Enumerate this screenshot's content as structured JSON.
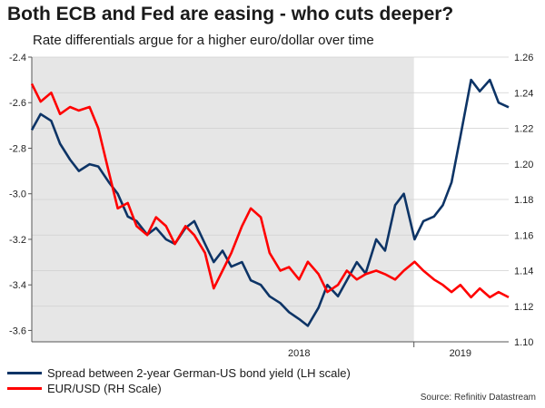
{
  "chart_data": {
    "type": "line",
    "title": "Both ECB and Fed are easing - who cuts deeper?",
    "subtitle": "Rate differentials argue for a higher euro/dollar over time",
    "source": "Source: Refinitiv Datastream",
    "x_tick_labels": [
      "2018",
      "2019"
    ],
    "shaded_period": [
      "2017-05-01",
      "2018-12-31"
    ],
    "x_range": [
      "2017-05-01",
      "2019-05-31"
    ],
    "y_left": {
      "range": [
        -3.65,
        -2.4
      ],
      "ticks": [
        -2.4,
        -2.6,
        -2.8,
        -3.0,
        -3.2,
        -3.4,
        -3.6
      ]
    },
    "y_right": {
      "range": [
        1.1,
        1.26
      ],
      "ticks": [
        "1.26",
        "1.24",
        "1.22",
        "1.20",
        "1.18",
        "1.16",
        "1.14",
        "1.12",
        "1.10"
      ]
    },
    "legend_placement": "bottom",
    "grid": "horizontal",
    "colors": {
      "spread": "#0d3466",
      "eurusd": "#ff0000",
      "shade": "#e6e6e6"
    },
    "series": [
      {
        "name": "Spread between 2-year German-US bond yield (LH scale)",
        "axis": "left",
        "color": "#0d3466",
        "points": [
          [
            "2017-05-01",
            -2.72
          ],
          [
            "2017-05-15",
            -2.65
          ],
          [
            "2017-06-01",
            -2.68
          ],
          [
            "2017-06-15",
            -2.78
          ],
          [
            "2017-07-01",
            -2.85
          ],
          [
            "2017-07-15",
            -2.9
          ],
          [
            "2017-08-01",
            -2.87
          ],
          [
            "2017-08-15",
            -2.88
          ],
          [
            "2017-09-01",
            -2.95
          ],
          [
            "2017-09-15",
            -3.0
          ],
          [
            "2017-10-01",
            -3.1
          ],
          [
            "2017-10-15",
            -3.12
          ],
          [
            "2017-11-01",
            -3.18
          ],
          [
            "2017-11-15",
            -3.15
          ],
          [
            "2017-12-01",
            -3.2
          ],
          [
            "2017-12-15",
            -3.22
          ],
          [
            "2018-01-01",
            -3.15
          ],
          [
            "2018-01-15",
            -3.12
          ],
          [
            "2018-02-01",
            -3.22
          ],
          [
            "2018-02-15",
            -3.3
          ],
          [
            "2018-03-01",
            -3.25
          ],
          [
            "2018-03-15",
            -3.32
          ],
          [
            "2018-04-01",
            -3.3
          ],
          [
            "2018-04-15",
            -3.38
          ],
          [
            "2018-05-01",
            -3.4
          ],
          [
            "2018-05-15",
            -3.45
          ],
          [
            "2018-06-01",
            -3.48
          ],
          [
            "2018-06-15",
            -3.52
          ],
          [
            "2018-07-01",
            -3.55
          ],
          [
            "2018-07-15",
            -3.58
          ],
          [
            "2018-08-01",
            -3.5
          ],
          [
            "2018-08-15",
            -3.4
          ],
          [
            "2018-09-01",
            -3.45
          ],
          [
            "2018-09-15",
            -3.38
          ],
          [
            "2018-10-01",
            -3.3
          ],
          [
            "2018-10-15",
            -3.35
          ],
          [
            "2018-11-01",
            -3.2
          ],
          [
            "2018-11-15",
            -3.25
          ],
          [
            "2018-12-01",
            -3.05
          ],
          [
            "2018-12-15",
            -3.0
          ],
          [
            "2019-01-01",
            -3.2
          ],
          [
            "2019-01-15",
            -3.12
          ],
          [
            "2019-02-01",
            -3.1
          ],
          [
            "2019-02-15",
            -3.05
          ],
          [
            "2019-03-01",
            -2.95
          ],
          [
            "2019-03-15",
            -2.75
          ],
          [
            "2019-04-01",
            -2.5
          ],
          [
            "2019-04-15",
            -2.55
          ],
          [
            "2019-05-01",
            -2.5
          ],
          [
            "2019-05-15",
            -2.6
          ],
          [
            "2019-05-31",
            -2.62
          ]
        ]
      },
      {
        "name": "EUR/USD (RH Scale)",
        "axis": "right",
        "color": "#ff0000",
        "points": [
          [
            "2017-05-01",
            1.245
          ],
          [
            "2017-05-15",
            1.235
          ],
          [
            "2017-06-01",
            1.24
          ],
          [
            "2017-06-15",
            1.228
          ],
          [
            "2017-07-01",
            1.232
          ],
          [
            "2017-07-15",
            1.23
          ],
          [
            "2017-08-01",
            1.232
          ],
          [
            "2017-08-15",
            1.22
          ],
          [
            "2017-09-01",
            1.195
          ],
          [
            "2017-09-15",
            1.175
          ],
          [
            "2017-10-01",
            1.178
          ],
          [
            "2017-10-15",
            1.165
          ],
          [
            "2017-11-01",
            1.16
          ],
          [
            "2017-11-15",
            1.17
          ],
          [
            "2017-12-01",
            1.165
          ],
          [
            "2017-12-15",
            1.155
          ],
          [
            "2018-01-01",
            1.165
          ],
          [
            "2018-01-15",
            1.16
          ],
          [
            "2018-02-01",
            1.15
          ],
          [
            "2018-02-15",
            1.13
          ],
          [
            "2018-03-01",
            1.14
          ],
          [
            "2018-03-15",
            1.15
          ],
          [
            "2018-04-01",
            1.165
          ],
          [
            "2018-04-15",
            1.175
          ],
          [
            "2018-05-01",
            1.17
          ],
          [
            "2018-05-15",
            1.15
          ],
          [
            "2018-06-01",
            1.14
          ],
          [
            "2018-06-15",
            1.142
          ],
          [
            "2018-07-01",
            1.135
          ],
          [
            "2018-07-15",
            1.145
          ],
          [
            "2018-08-01",
            1.138
          ],
          [
            "2018-08-15",
            1.128
          ],
          [
            "2018-09-01",
            1.132
          ],
          [
            "2018-09-15",
            1.14
          ],
          [
            "2018-10-01",
            1.135
          ],
          [
            "2018-10-15",
            1.138
          ],
          [
            "2018-11-01",
            1.14
          ],
          [
            "2018-11-15",
            1.138
          ],
          [
            "2018-12-01",
            1.135
          ],
          [
            "2018-12-15",
            1.14
          ],
          [
            "2019-01-01",
            1.145
          ],
          [
            "2019-01-15",
            1.14
          ],
          [
            "2019-02-01",
            1.135
          ],
          [
            "2019-02-15",
            1.132
          ],
          [
            "2019-03-01",
            1.128
          ],
          [
            "2019-03-15",
            1.132
          ],
          [
            "2019-04-01",
            1.125
          ],
          [
            "2019-04-15",
            1.13
          ],
          [
            "2019-05-01",
            1.125
          ],
          [
            "2019-05-15",
            1.128
          ],
          [
            "2019-05-31",
            1.125
          ]
        ]
      }
    ]
  }
}
